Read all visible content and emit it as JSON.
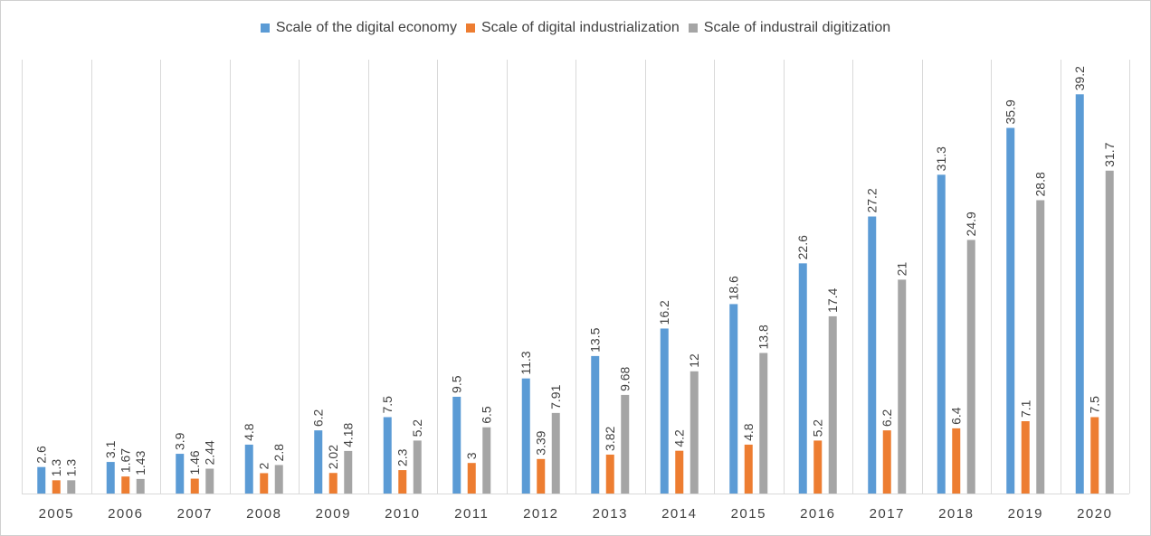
{
  "chart_data": {
    "type": "bar",
    "title": "",
    "xlabel": "",
    "ylabel": "",
    "ylim": [
      0,
      42.6
    ],
    "grid": "vertical-category-separators",
    "legend_position": "top-center",
    "categories": [
      "2005",
      "2006",
      "2007",
      "2008",
      "2009",
      "2010",
      "2011",
      "2012",
      "2013",
      "2014",
      "2015",
      "2016",
      "2017",
      "2018",
      "2019",
      "2020"
    ],
    "series": [
      {
        "name": "Scale of the digital economy",
        "color": "#5b9bd5",
        "values": [
          2.6,
          3.1,
          3.9,
          4.8,
          6.2,
          7.5,
          9.5,
          11.3,
          13.5,
          16.2,
          18.6,
          22.6,
          27.2,
          31.3,
          35.9,
          39.2
        ],
        "labels": [
          "2.6",
          "3.1",
          "3.9",
          "4.8",
          "6.2",
          "7.5",
          "9.5",
          "11.3",
          "13.5",
          "16.2",
          "18.6",
          "22.6",
          "27.2",
          "31.3",
          "35.9",
          "39.2"
        ]
      },
      {
        "name": "Scale of digital industrialization",
        "color": "#ed7d31",
        "values": [
          1.3,
          1.67,
          1.46,
          2,
          2.02,
          2.3,
          3,
          3.39,
          3.82,
          4.2,
          4.8,
          5.2,
          6.2,
          6.4,
          7.1,
          7.5
        ],
        "labels": [
          "1.3",
          "1.67",
          "1.46",
          "2",
          "2.02",
          "2.3",
          "3",
          "3.39",
          "3.82",
          "4.2",
          "4.8",
          "5.2",
          "6.2",
          "6.4",
          "7.1",
          "7.5"
        ]
      },
      {
        "name": "Scale of industrail digitization",
        "color": "#a5a5a5",
        "values": [
          1.3,
          1.43,
          2.44,
          2.8,
          4.18,
          5.2,
          6.5,
          7.91,
          9.68,
          12,
          13.8,
          17.4,
          21,
          24.9,
          28.8,
          31.7
        ],
        "labels": [
          "1.3",
          "1.43",
          "2.44",
          "2.8",
          "4.18",
          "5.2",
          "6.5",
          "7.91",
          "9.68",
          "12",
          "13.8",
          "17.4",
          "21",
          "24.9",
          "28.8",
          "31.7"
        ]
      }
    ]
  }
}
